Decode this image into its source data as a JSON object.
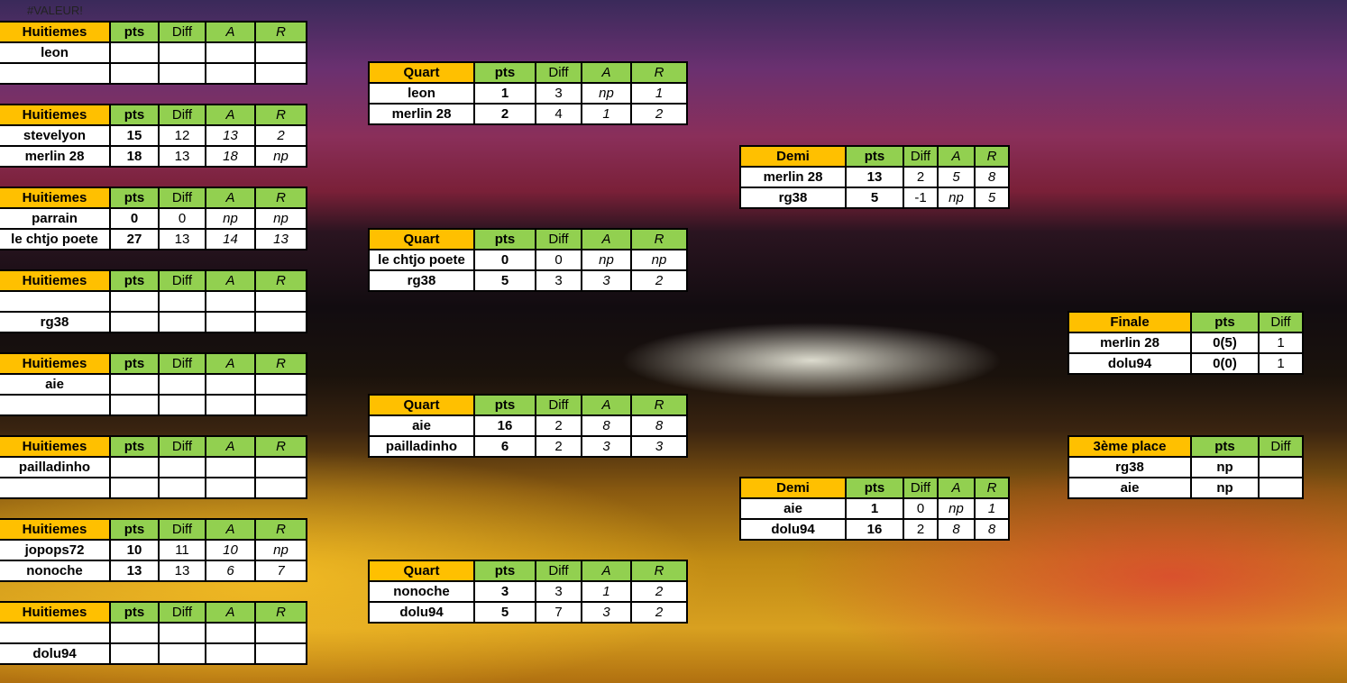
{
  "error_cell": "#VALEUR!",
  "colors": {
    "title_header": "#ffc000",
    "column_header": "#92d050",
    "cell": "#ffffff"
  },
  "headers5": [
    "pts",
    "Diff",
    "A",
    "R"
  ],
  "headers3": [
    "pts",
    "Diff"
  ],
  "huitiemes": [
    {
      "title": "Huitiemes",
      "rows": [
        [
          "leon",
          "",
          "",
          "",
          ""
        ],
        [
          "",
          "",
          "",
          "",
          ""
        ]
      ]
    },
    {
      "title": "Huitiemes",
      "rows": [
        [
          "stevelyon",
          "15",
          "12",
          "13",
          "2"
        ],
        [
          "merlin 28",
          "18",
          "13",
          "18",
          "np"
        ]
      ]
    },
    {
      "title": "Huitiemes",
      "rows": [
        [
          "parrain",
          "0",
          "0",
          "np",
          "np"
        ],
        [
          "le chtjo poete",
          "27",
          "13",
          "14",
          "13"
        ]
      ]
    },
    {
      "title": "Huitiemes",
      "rows": [
        [
          "",
          "",
          "",
          "",
          ""
        ],
        [
          "rg38",
          "",
          "",
          "",
          ""
        ]
      ]
    },
    {
      "title": "Huitiemes",
      "rows": [
        [
          "aie",
          "",
          "",
          "",
          ""
        ],
        [
          "",
          "",
          "",
          "",
          ""
        ]
      ]
    },
    {
      "title": "Huitiemes",
      "rows": [
        [
          "pailladinho",
          "",
          "",
          "",
          ""
        ],
        [
          "",
          "",
          "",
          "",
          ""
        ]
      ]
    },
    {
      "title": "Huitiemes",
      "rows": [
        [
          "jopops72",
          "10",
          "11",
          "10",
          "np"
        ],
        [
          "nonoche",
          "13",
          "13",
          "6",
          "7"
        ]
      ]
    },
    {
      "title": "Huitiemes",
      "rows": [
        [
          "",
          "",
          "",
          "",
          ""
        ],
        [
          "dolu94",
          "",
          "",
          "",
          ""
        ]
      ]
    }
  ],
  "quarts": [
    {
      "title": "Quart",
      "rows": [
        [
          "leon",
          "1",
          "3",
          "np",
          "1"
        ],
        [
          "merlin 28",
          "2",
          "4",
          "1",
          "2"
        ]
      ]
    },
    {
      "title": "Quart",
      "rows": [
        [
          "le chtjo poete",
          "0",
          "0",
          "np",
          "np"
        ],
        [
          "rg38",
          "5",
          "3",
          "3",
          "2"
        ]
      ]
    },
    {
      "title": "Quart",
      "rows": [
        [
          "aie",
          "16",
          "2",
          "8",
          "8"
        ],
        [
          "pailladinho",
          "6",
          "2",
          "3",
          "3"
        ]
      ]
    },
    {
      "title": "Quart",
      "rows": [
        [
          "nonoche",
          "3",
          "3",
          "1",
          "2"
        ],
        [
          "dolu94",
          "5",
          "7",
          "3",
          "2"
        ]
      ]
    }
  ],
  "demis": [
    {
      "title": "Demi",
      "rows": [
        [
          "merlin 28",
          "13",
          "2",
          "5",
          "8"
        ],
        [
          "rg38",
          "5",
          "-1",
          "np",
          "5"
        ]
      ]
    },
    {
      "title": "Demi",
      "rows": [
        [
          "aie",
          "1",
          "0",
          "np",
          "1"
        ],
        [
          "dolu94",
          "16",
          "2",
          "8",
          "8"
        ]
      ]
    }
  ],
  "finale": {
    "title": "Finale",
    "rows": [
      [
        "merlin 28",
        "0(5)",
        "1"
      ],
      [
        "dolu94",
        "0(0)",
        "1"
      ]
    ]
  },
  "troisieme": {
    "title": "3ème place",
    "rows": [
      [
        "rg38",
        "np",
        ""
      ],
      [
        "aie",
        "np",
        ""
      ]
    ]
  }
}
